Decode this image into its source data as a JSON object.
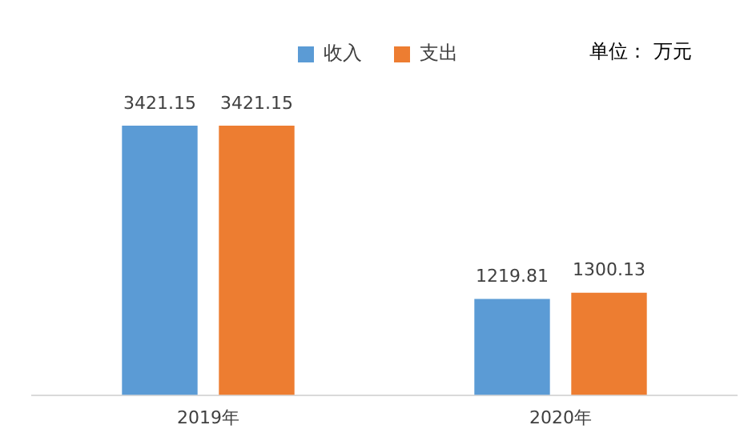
{
  "chart_data": {
    "type": "bar",
    "categories": [
      "2019年",
      "2020年"
    ],
    "series": [
      {
        "name": "收入",
        "color": "#5b9bd5",
        "values": [
          3421.15,
          1219.81
        ]
      },
      {
        "name": "支出",
        "color": "#ed7d31",
        "values": [
          3421.15,
          1300.13
        ]
      }
    ],
    "data_labels": true,
    "legend": "top",
    "grid": false,
    "annotations": [
      "单位： 万元"
    ]
  }
}
